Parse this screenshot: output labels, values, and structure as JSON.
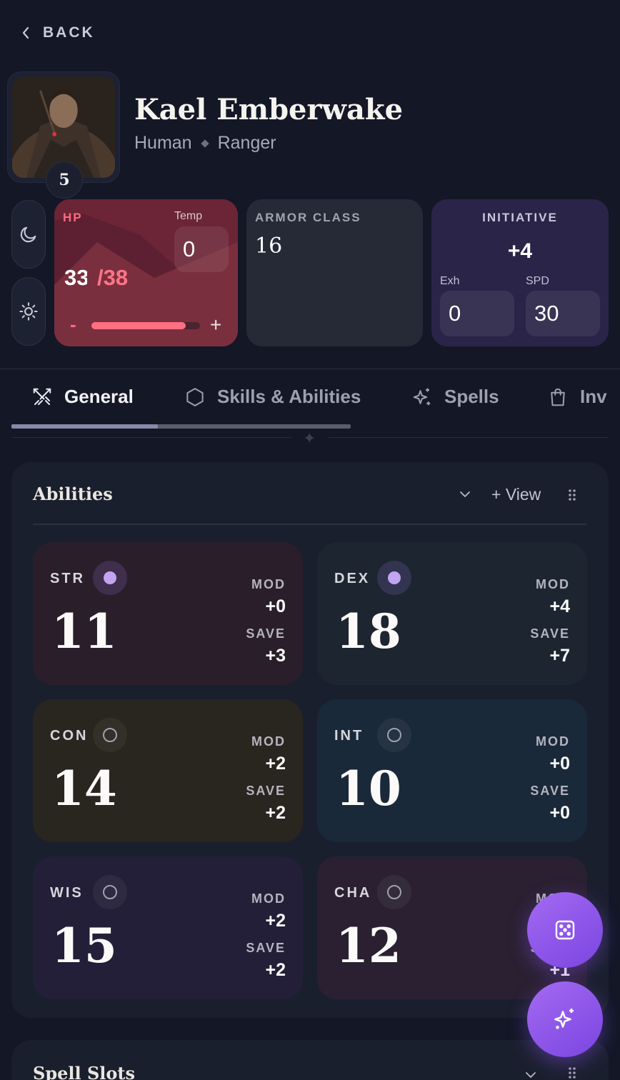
{
  "nav": {
    "back_label": "BACK"
  },
  "character": {
    "name": "Kael Emberwake",
    "race": "Human",
    "class": "Ranger",
    "level": "5"
  },
  "hp": {
    "label": "HP",
    "current": "33",
    "max_display": "/38",
    "current_value": 33,
    "max_value": 38,
    "temp_label": "Temp",
    "temp_value": "0",
    "minus_label": "-",
    "plus_label": "+"
  },
  "armor_class": {
    "label": "ARMOR CLASS",
    "value": "16"
  },
  "initiative": {
    "label": "INITIATIVE",
    "value": "+4",
    "exh_label": "Exh",
    "exh_value": "0",
    "spd_label": "SPD",
    "spd_value": "30"
  },
  "tabs": [
    {
      "label": "General",
      "icon": "crossed-swords-icon",
      "active": true
    },
    {
      "label": "Skills & Abilities",
      "icon": "hexagon-icon",
      "active": false
    },
    {
      "label": "Spells",
      "icon": "sparkles-icon",
      "active": false
    },
    {
      "label": "Inv",
      "icon": "shopping-bag-icon",
      "active": false
    }
  ],
  "abilities_panel": {
    "title": "Abilities",
    "view_label": "+ View",
    "mod_label": "MOD",
    "save_label": "SAVE",
    "items": [
      {
        "name": "STR",
        "score": "11",
        "mod": "+0",
        "save": "+3",
        "proficient": true,
        "color": "#2a1e2b"
      },
      {
        "name": "DEX",
        "score": "18",
        "mod": "+4",
        "save": "+7",
        "proficient": true,
        "color": "#1c2530"
      },
      {
        "name": "CON",
        "score": "14",
        "mod": "+2",
        "save": "+2",
        "proficient": false,
        "color": "#29251f"
      },
      {
        "name": "INT",
        "score": "10",
        "mod": "+0",
        "save": "+0",
        "proficient": false,
        "color": "#1a2939"
      },
      {
        "name": "WIS",
        "score": "15",
        "mod": "+2",
        "save": "+2",
        "proficient": false,
        "color": "#231f38"
      },
      {
        "name": "CHA",
        "score": "12",
        "mod": "",
        "save": "+1",
        "proficient": false,
        "color": "#2a2031"
      }
    ]
  },
  "spell_slots_panel": {
    "title": "Spell Slots"
  },
  "fabs": {
    "dice": "dice-icon",
    "ai": "sparkles-icon"
  },
  "colors": {
    "accent": "#8b55ea",
    "hp": "#ff6f82",
    "background": "#131726"
  }
}
